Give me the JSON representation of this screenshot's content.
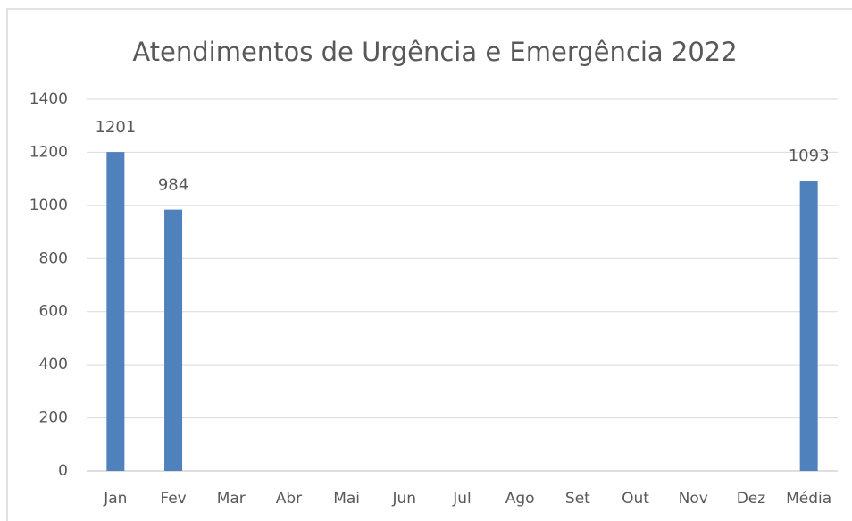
{
  "chart_data": {
    "type": "bar",
    "title": "Atendimentos de Urgência e Emergência 2022",
    "categories": [
      "Jan",
      "Fev",
      "Mar",
      "Abr",
      "Mai",
      "Jun",
      "Jul",
      "Ago",
      "Set",
      "Out",
      "Nov",
      "Dez",
      "Média"
    ],
    "values": [
      1201,
      984,
      null,
      null,
      null,
      null,
      null,
      null,
      null,
      null,
      null,
      null,
      1093
    ],
    "color": "#4f81bd",
    "ylim": [
      0,
      1400
    ],
    "yticks": [
      0,
      200,
      400,
      600,
      800,
      1000,
      1200,
      1400
    ],
    "grid": true
  }
}
